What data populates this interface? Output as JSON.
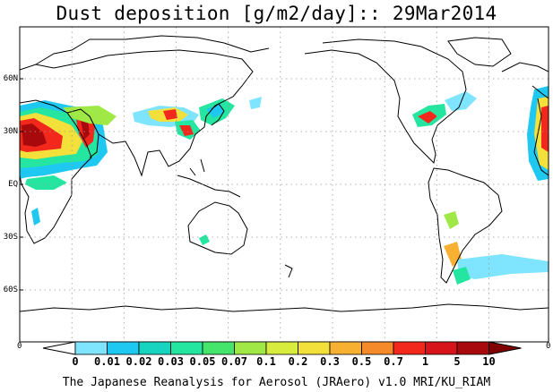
{
  "title": "Dust deposition [g/m2/day]:: 29Mar2014",
  "lat_labels": [
    "60N",
    "30N",
    "EQ",
    "30S",
    "60S"
  ],
  "lon_edge_labels": [
    "0",
    "0"
  ],
  "colorbar": {
    "labels": [
      "0",
      "0.01",
      "0.02",
      "0.03",
      "0.05",
      "0.07",
      "0.1",
      "0.2",
      "0.3",
      "0.5",
      "0.7",
      "1",
      "5",
      "10"
    ],
    "colors": [
      "#ffffff",
      "#7fe5ff",
      "#1fc8f0",
      "#17d4c0",
      "#24e6a0",
      "#45e46a",
      "#9fe846",
      "#d7ec3c",
      "#f3e03a",
      "#f7b032",
      "#f48a2a",
      "#f2281c",
      "#d6141a",
      "#a8090c",
      "#800000"
    ]
  },
  "footer": "The Japanese Reanalysis for Aerosol (JRAero) v1.0 MRI/KU_RIAM"
}
